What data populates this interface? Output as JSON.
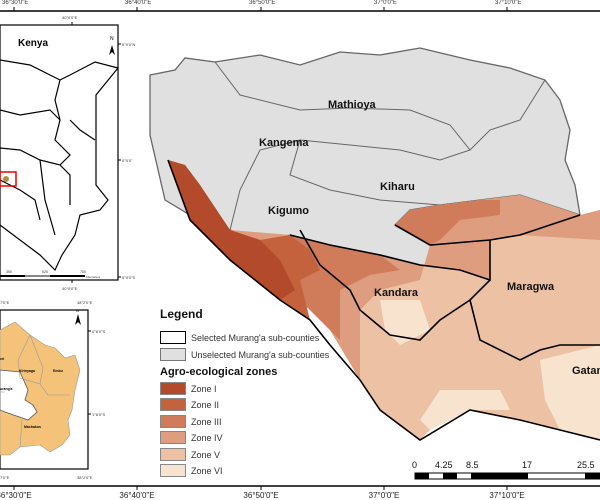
{
  "top_axis": [
    "36°30'0\"E",
    "36°40'0\"E",
    "36°50'0\"E",
    "37°0'0\"E",
    "37°10'0\"E"
  ],
  "bottom_axis": [
    "36°30'0\"E",
    "36°40'0\"E",
    "36°50'0\"E",
    "37°0'0\"E",
    "37°10'0\"E"
  ],
  "kenya_inset": {
    "title": "Kenya",
    "north": "N",
    "top_lon": "40°0'0\"E",
    "bottom_lon": "40°0'0\"E",
    "lat_labels": [
      "5°0'0\"N",
      "0°0'0\"",
      "5°0'0\"S"
    ],
    "scale": [
      "350",
      "525",
      "700",
      "Kilometers"
    ]
  },
  "county_inset": {
    "north": "N",
    "top_lon": "38°2'0\"E",
    "bottom_lon": "38°2'0\"E",
    "left_top_lon": "7'0\"E",
    "left_bottom_lon": "7'0\"E",
    "lat_labels": [
      "0°6'0\"S",
      "1°6'0\"S"
    ],
    "counties": [
      "Kirinyaga",
      "Embu",
      "urang'a",
      "Machakos",
      "eri"
    ],
    "colors": {
      "fill": "#f5c27a",
      "murang'a": "#ffffff"
    }
  },
  "map_labels": [
    "Mathioya",
    "Kangema",
    "Kiharu",
    "Kigumo",
    "Kandara",
    "Maragwa",
    "Gatan"
  ],
  "legend": {
    "title": "Legend",
    "boundaries": [
      {
        "label": "Selected Murang'a sub-counties",
        "color": "#ffffff"
      },
      {
        "label": "Unselected Murang'a sub-counties",
        "color": "#e0e0e0"
      }
    ],
    "zones_title": "Agro-ecological zones",
    "zones": [
      {
        "label": "Zone I",
        "color": "#b24a2b"
      },
      {
        "label": "Zone II",
        "color": "#c4623e"
      },
      {
        "label": "Zone III",
        "color": "#d07c5a"
      },
      {
        "label": "Zone IV",
        "color": "#de9d7e"
      },
      {
        "label": "Zone V",
        "color": "#ecc1a4"
      },
      {
        "label": "Zone VI",
        "color": "#f8e3cf"
      }
    ]
  },
  "scale_bar": [
    "0",
    "4.25",
    "8.5",
    "17",
    "25.5"
  ]
}
